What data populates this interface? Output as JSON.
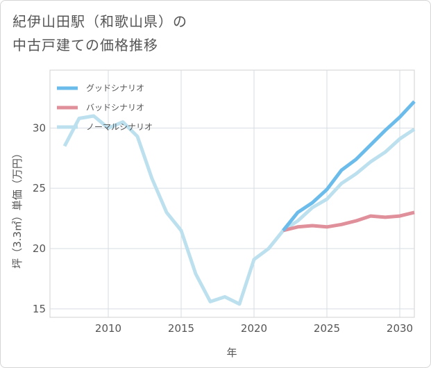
{
  "title_line1": "紀伊山田駅（和歌山県）の",
  "title_line2": "中古戸建ての価格推移",
  "chart_data": {
    "type": "line",
    "title": "紀伊山田駅（和歌山県）の中古戸建ての価格推移",
    "xlabel": "年",
    "ylabel": "坪（3.3㎡）単価（万円）",
    "xlim": [
      2006.0,
      2031.0
    ],
    "ylim": [
      14.3,
      34.8
    ],
    "xticks": [
      2010,
      2015,
      2020,
      2025,
      2030
    ],
    "yticks": [
      15,
      20,
      25,
      30
    ],
    "grid": true,
    "legend_position": "top-left",
    "series": [
      {
        "name": "グッドシナリオ",
        "color": "#6bbcea",
        "x": [
          2022,
          2023,
          2024,
          2025,
          2026,
          2027,
          2028,
          2029,
          2030,
          2031
        ],
        "y": [
          21.5,
          23.0,
          23.8,
          24.9,
          26.5,
          27.4,
          28.6,
          29.8,
          30.9,
          32.2
        ]
      },
      {
        "name": "バッドシナリオ",
        "color": "#e0909a",
        "x": [
          2022,
          2023,
          2024,
          2025,
          2026,
          2027,
          2028,
          2029,
          2030,
          2031
        ],
        "y": [
          21.5,
          21.8,
          21.9,
          21.8,
          22.0,
          22.3,
          22.7,
          22.6,
          22.7,
          23.0
        ]
      },
      {
        "name": "ノーマルシナリオ",
        "color": "#bde0ef",
        "x": [
          2007,
          2008,
          2009,
          2010,
          2011,
          2012,
          2013,
          2014,
          2015,
          2016,
          2017,
          2018,
          2019,
          2020,
          2021,
          2022,
          2023,
          2024,
          2025,
          2026,
          2027,
          2028,
          2029,
          2030,
          2031
        ],
        "y": [
          28.5,
          30.8,
          31.0,
          30.0,
          30.5,
          29.3,
          25.8,
          23.0,
          21.5,
          17.9,
          15.6,
          16.0,
          15.4,
          19.1,
          20.0,
          21.5,
          22.3,
          23.4,
          24.1,
          25.4,
          26.2,
          27.2,
          28.0,
          29.1,
          29.9
        ]
      }
    ]
  }
}
